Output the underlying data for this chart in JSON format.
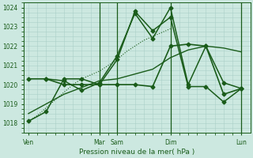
{
  "background_color": "#cce8e0",
  "grid_color": "#aacfc8",
  "line_color": "#1a5c1a",
  "tick_label_color": "#1a5c1a",
  "xlabel": "Pression niveau de la mer( hPa )",
  "ylim": [
    1017.5,
    1024.2
  ],
  "yticks": [
    1018,
    1019,
    1020,
    1021,
    1022,
    1023,
    1024
  ],
  "xtick_labels": [
    "Ven",
    "Mar",
    "Sam",
    "Dim",
    "Lun"
  ],
  "xtick_positions": [
    0,
    8,
    10,
    16,
    24
  ],
  "vlines": [
    8,
    10,
    16,
    24
  ],
  "vline_color": "#1a5c1a",
  "vline_lw": 0.8,
  "lines": [
    {
      "x": [
        0,
        1,
        2,
        3,
        4,
        5,
        6,
        7,
        8,
        9,
        10,
        11,
        12,
        13,
        14,
        15,
        16
      ],
      "y": [
        1018.1,
        1018.4,
        1018.8,
        1019.2,
        1019.6,
        1020.0,
        1020.3,
        1020.5,
        1020.7,
        1021.0,
        1021.3,
        1021.7,
        1022.0,
        1022.3,
        1022.5,
        1022.7,
        1022.9
      ],
      "lw": 0.8,
      "ls": "dotted",
      "marker": "None"
    },
    {
      "x": [
        0,
        4,
        8,
        10,
        14,
        16,
        18,
        20,
        22,
        24
      ],
      "y": [
        1018.5,
        1019.5,
        1020.2,
        1020.3,
        1020.8,
        1021.4,
        1021.8,
        1022.0,
        1021.9,
        1021.7
      ],
      "lw": 1.0,
      "ls": "solid",
      "marker": "None"
    },
    {
      "x": [
        0,
        2,
        4,
        6,
        8,
        10,
        12,
        14,
        16,
        18,
        20,
        22,
        24
      ],
      "y": [
        1018.1,
        1018.6,
        1020.3,
        1020.3,
        1020.0,
        1021.3,
        1023.8,
        1022.8,
        1023.5,
        1019.9,
        1019.9,
        1019.1,
        1019.8
      ],
      "lw": 1.1,
      "ls": "solid",
      "marker": "D"
    },
    {
      "x": [
        0,
        2,
        4,
        6,
        8,
        10,
        12,
        14,
        16,
        18,
        20,
        22,
        24
      ],
      "y": [
        1020.3,
        1020.3,
        1020.0,
        1020.0,
        1020.0,
        1020.0,
        1020.0,
        1019.9,
        1022.0,
        1022.1,
        1022.0,
        1019.5,
        1019.8
      ],
      "lw": 1.2,
      "ls": "solid",
      "marker": "D"
    },
    {
      "x": [
        2,
        4,
        6,
        8,
        10,
        12,
        14,
        16,
        18,
        20,
        22,
        24
      ],
      "y": [
        1020.3,
        1020.2,
        1019.7,
        1020.1,
        1021.5,
        1023.7,
        1022.4,
        1024.0,
        1020.0,
        1022.0,
        1020.1,
        1019.8
      ],
      "lw": 1.1,
      "ls": "solid",
      "marker": "D"
    }
  ],
  "markersize": 2.5
}
